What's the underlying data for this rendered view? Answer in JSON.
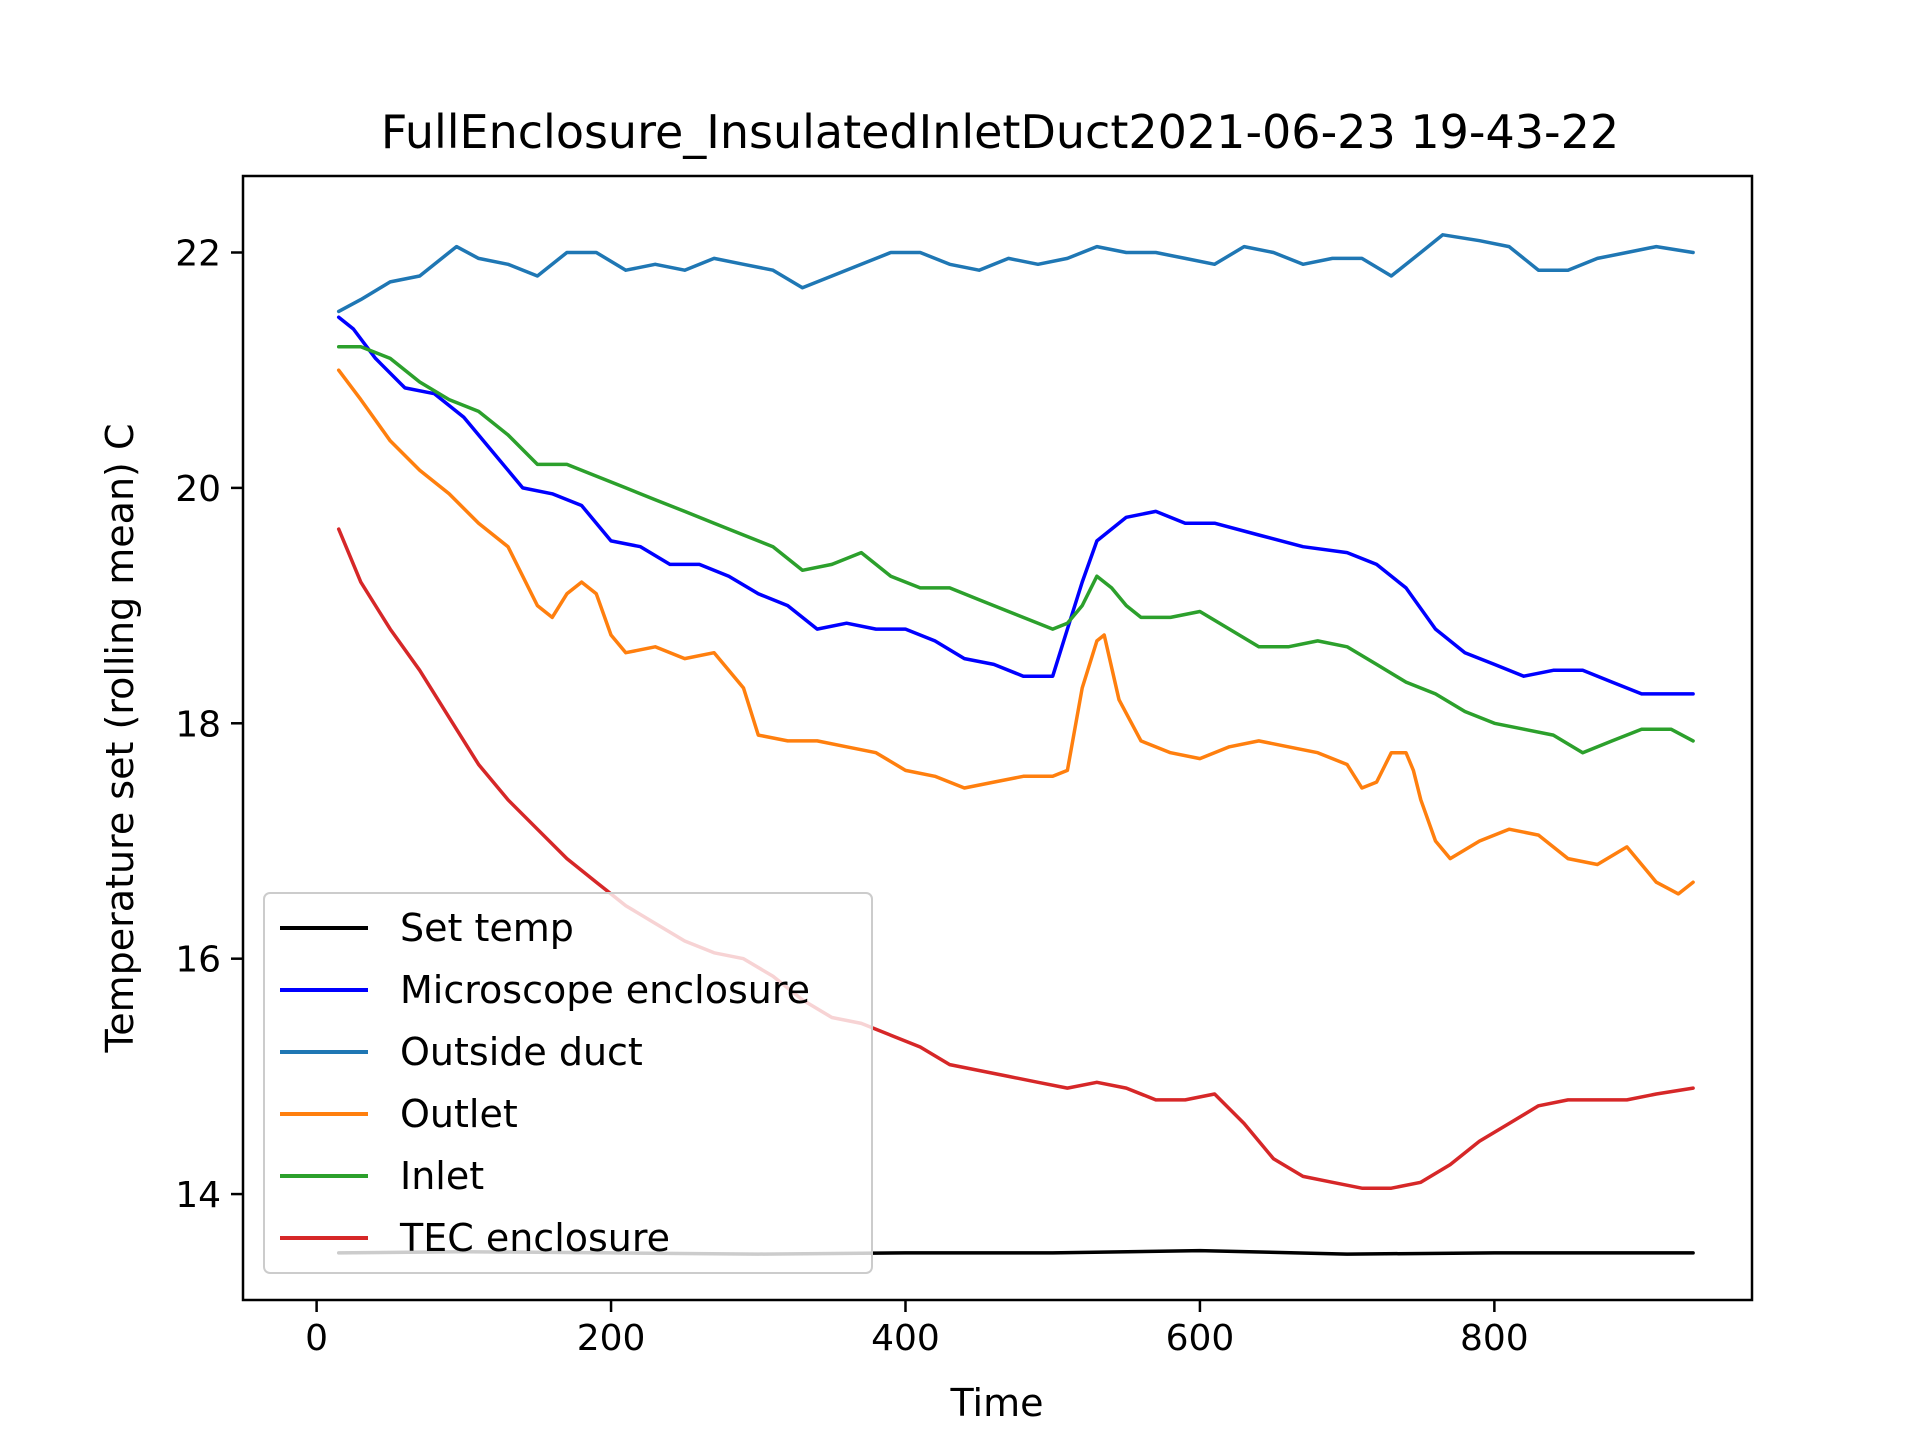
{
  "chart_data": {
    "type": "line",
    "title": "FullEnclosure_InsulatedInletDuct2021-06-23 19-43-22",
    "xlabel": "Time",
    "ylabel": "Temperature set (rolling mean) C",
    "xlim": [
      -50,
      975
    ],
    "ylim": [
      13.1,
      22.65
    ],
    "xticks": [
      0,
      200,
      400,
      600,
      800
    ],
    "yticks": [
      14,
      16,
      18,
      20,
      22
    ],
    "grid": false,
    "legend_position": "lower-left",
    "series": [
      {
        "name": "Set temp",
        "color": "#000000",
        "x": [
          15,
          100,
          200,
          300,
          400,
          500,
          600,
          700,
          800,
          900,
          935
        ],
        "y": [
          13.5,
          13.51,
          13.5,
          13.49,
          13.5,
          13.5,
          13.52,
          13.49,
          13.5,
          13.5,
          13.5
        ]
      },
      {
        "name": "Microscope enclosure",
        "color": "#0000ff",
        "x": [
          15,
          25,
          40,
          60,
          80,
          100,
          120,
          140,
          160,
          180,
          200,
          220,
          240,
          260,
          280,
          300,
          320,
          340,
          360,
          380,
          400,
          420,
          440,
          460,
          480,
          500,
          510,
          520,
          530,
          550,
          570,
          590,
          610,
          640,
          670,
          700,
          720,
          740,
          760,
          780,
          800,
          820,
          840,
          860,
          880,
          900,
          935
        ],
        "y": [
          21.45,
          21.35,
          21.1,
          20.85,
          20.8,
          20.6,
          20.3,
          20.0,
          19.95,
          19.85,
          19.55,
          19.5,
          19.35,
          19.35,
          19.25,
          19.1,
          19.0,
          18.8,
          18.85,
          18.8,
          18.8,
          18.7,
          18.55,
          18.5,
          18.4,
          18.4,
          18.8,
          19.2,
          19.55,
          19.75,
          19.8,
          19.7,
          19.7,
          19.6,
          19.5,
          19.45,
          19.35,
          19.15,
          18.8,
          18.6,
          18.5,
          18.4,
          18.45,
          18.45,
          18.35,
          18.25,
          18.25
        ]
      },
      {
        "name": "Outside duct",
        "color": "#1f77b4",
        "x": [
          15,
          30,
          50,
          70,
          95,
          110,
          130,
          150,
          170,
          190,
          210,
          230,
          250,
          270,
          290,
          310,
          330,
          350,
          370,
          390,
          410,
          430,
          450,
          470,
          490,
          510,
          530,
          550,
          570,
          590,
          610,
          630,
          650,
          670,
          690,
          710,
          730,
          750,
          765,
          790,
          810,
          830,
          850,
          870,
          890,
          910,
          935
        ],
        "y": [
          21.5,
          21.6,
          21.75,
          21.8,
          22.05,
          21.95,
          21.9,
          21.8,
          22.0,
          22.0,
          21.85,
          21.9,
          21.85,
          21.95,
          21.9,
          21.85,
          21.7,
          21.8,
          21.9,
          22.0,
          22.0,
          21.9,
          21.85,
          21.95,
          21.9,
          21.95,
          22.05,
          22.0,
          22.0,
          21.95,
          21.9,
          22.05,
          22.0,
          21.9,
          21.95,
          21.95,
          21.8,
          22.0,
          22.15,
          22.1,
          22.05,
          21.85,
          21.85,
          21.95,
          22.0,
          22.05,
          22.0
        ]
      },
      {
        "name": "Outlet",
        "color": "#ff7f0e",
        "x": [
          15,
          30,
          50,
          70,
          90,
          110,
          130,
          150,
          160,
          170,
          180,
          190,
          200,
          210,
          230,
          250,
          270,
          290,
          300,
          320,
          340,
          360,
          380,
          400,
          420,
          440,
          460,
          480,
          500,
          510,
          520,
          530,
          535,
          545,
          560,
          580,
          600,
          620,
          640,
          660,
          680,
          700,
          710,
          720,
          730,
          740,
          745,
          750,
          760,
          770,
          790,
          810,
          830,
          850,
          870,
          890,
          910,
          925,
          935
        ],
        "y": [
          21.0,
          20.75,
          20.4,
          20.15,
          19.95,
          19.7,
          19.5,
          19.0,
          18.9,
          19.1,
          19.2,
          19.1,
          18.75,
          18.6,
          18.65,
          18.55,
          18.6,
          18.3,
          17.9,
          17.85,
          17.85,
          17.8,
          17.75,
          17.6,
          17.55,
          17.45,
          17.5,
          17.55,
          17.55,
          17.6,
          18.3,
          18.7,
          18.75,
          18.2,
          17.85,
          17.75,
          17.7,
          17.8,
          17.85,
          17.8,
          17.75,
          17.65,
          17.45,
          17.5,
          17.75,
          17.75,
          17.6,
          17.35,
          17.0,
          16.85,
          17.0,
          17.1,
          17.05,
          16.85,
          16.8,
          16.95,
          16.65,
          16.55,
          16.65
        ]
      },
      {
        "name": "Inlet",
        "color": "#2ca02c",
        "x": [
          15,
          30,
          50,
          70,
          90,
          110,
          130,
          150,
          170,
          190,
          210,
          230,
          250,
          270,
          290,
          310,
          330,
          350,
          370,
          390,
          410,
          430,
          450,
          470,
          490,
          500,
          510,
          520,
          530,
          540,
          550,
          560,
          580,
          600,
          620,
          640,
          660,
          680,
          700,
          720,
          740,
          760,
          780,
          800,
          820,
          840,
          860,
          880,
          900,
          920,
          935
        ],
        "y": [
          21.2,
          21.2,
          21.1,
          20.9,
          20.75,
          20.65,
          20.45,
          20.2,
          20.2,
          20.1,
          20.0,
          19.9,
          19.8,
          19.7,
          19.6,
          19.5,
          19.3,
          19.35,
          19.45,
          19.25,
          19.15,
          19.15,
          19.05,
          18.95,
          18.85,
          18.8,
          18.85,
          19.0,
          19.25,
          19.15,
          19.0,
          18.9,
          18.9,
          18.95,
          18.8,
          18.65,
          18.65,
          18.7,
          18.65,
          18.5,
          18.35,
          18.25,
          18.1,
          18.0,
          17.95,
          17.9,
          17.75,
          17.85,
          17.95,
          17.95,
          17.85
        ]
      },
      {
        "name": "TEC enclosure",
        "color": "#d62728",
        "x": [
          15,
          30,
          50,
          70,
          90,
          110,
          130,
          150,
          170,
          190,
          210,
          230,
          250,
          270,
          290,
          310,
          330,
          350,
          370,
          390,
          410,
          430,
          450,
          470,
          490,
          510,
          530,
          550,
          570,
          590,
          610,
          630,
          650,
          670,
          690,
          710,
          730,
          750,
          770,
          790,
          810,
          830,
          850,
          870,
          890,
          910,
          935
        ],
        "y": [
          19.65,
          19.2,
          18.8,
          18.45,
          18.05,
          17.65,
          17.35,
          17.1,
          16.85,
          16.65,
          16.45,
          16.3,
          16.15,
          16.05,
          16.0,
          15.85,
          15.65,
          15.5,
          15.45,
          15.35,
          15.25,
          15.1,
          15.05,
          15.0,
          14.95,
          14.9,
          14.95,
          14.9,
          14.8,
          14.8,
          14.85,
          14.6,
          14.3,
          14.15,
          14.1,
          14.05,
          14.05,
          14.1,
          14.25,
          14.45,
          14.6,
          14.75,
          14.8,
          14.8,
          14.8,
          14.85,
          14.9
        ]
      }
    ]
  }
}
